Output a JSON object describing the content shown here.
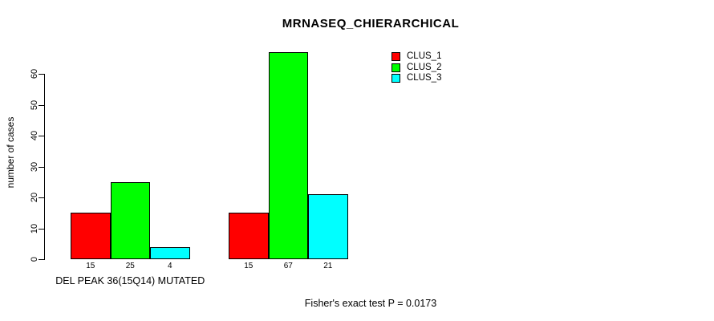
{
  "title": "MRNASEQ_CHIERARCHICAL",
  "footer": "Fisher's exact test P = 0.0173",
  "chart_data": {
    "type": "bar",
    "title": "MRNASEQ_CHIERARCHICAL",
    "ylabel": "number of cases",
    "xlabel": "",
    "ylim": [
      0,
      60
    ],
    "yticks": [
      0,
      10,
      20,
      30,
      40,
      50,
      60
    ],
    "grid": false,
    "legend_position": "top-right",
    "background_color": "#ffffff",
    "bar_border_color": "#000000",
    "series_colors": [
      "#ff0000",
      "#00ff00",
      "#00ffff"
    ],
    "groups": [
      {
        "label": "DEL PEAK 36(15Q14) MUTATED",
        "values": [
          15,
          25,
          4
        ]
      },
      {
        "label": "",
        "values": [
          15,
          67,
          21
        ]
      }
    ],
    "legend": [
      {
        "label": "CLUS_1",
        "color": "#ff0000"
      },
      {
        "label": "CLUS_2",
        "color": "#00ff00"
      },
      {
        "label": "CLUS_3",
        "color": "#00ffff"
      }
    ],
    "annotation": "Fisher's exact test P = 0.0173"
  }
}
